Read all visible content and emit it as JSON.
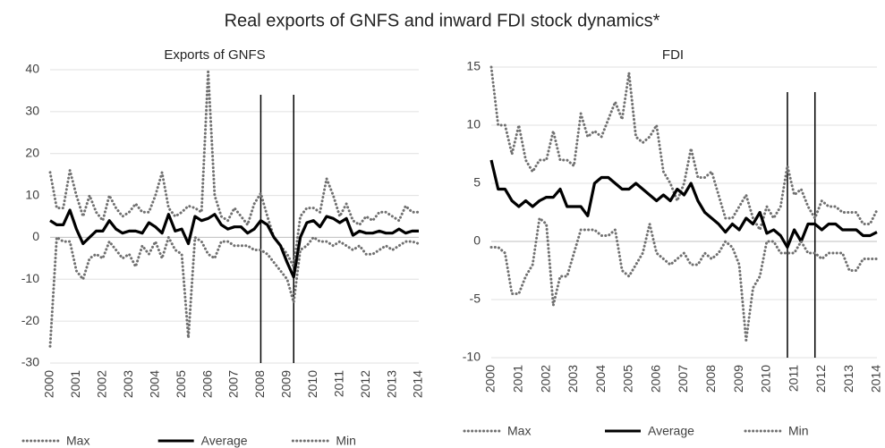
{
  "title": "Real exports of GNFS and inward FDI stock dynamics*",
  "chart_data": [
    {
      "type": "line",
      "title": "Exports of GNFS",
      "categories": [
        "2000",
        null,
        null,
        null,
        "2001",
        null,
        null,
        null,
        "2002",
        null,
        null,
        null,
        "2003",
        null,
        null,
        null,
        "2004",
        null,
        null,
        null,
        "2005",
        null,
        null,
        null,
        "2006",
        null,
        null,
        null,
        "2007",
        null,
        null,
        null,
        "2008",
        null,
        null,
        null,
        "2009",
        null,
        null,
        null,
        "2010",
        null,
        null,
        null,
        "2011",
        null,
        null,
        null,
        "2012",
        null,
        null,
        null,
        "2013",
        null,
        null,
        null,
        "2014"
      ],
      "ylim": [
        -30,
        40
      ],
      "yticks": [
        -30,
        -20,
        -10,
        0,
        10,
        20,
        30,
        40
      ],
      "grid": true,
      "vlines": [
        2008,
        2009.25
      ],
      "series": [
        {
          "name": "Max",
          "color": "#707070",
          "style": "dotted",
          "values": [
            15.5,
            7,
            7,
            16,
            10,
            5,
            10,
            6,
            4,
            10,
            7,
            5,
            6,
            8,
            6,
            6,
            10,
            15.5,
            7,
            5,
            6,
            7.5,
            7,
            6,
            39.5,
            10,
            5,
            4,
            7,
            5,
            3,
            8,
            10.5,
            5,
            0,
            -2,
            -4,
            -7,
            5,
            7,
            7,
            6,
            14,
            10,
            5,
            8,
            4,
            3,
            5,
            4,
            6,
            6,
            5,
            4,
            7.5,
            6,
            6
          ]
        },
        {
          "name": "Average",
          "color": "#000000",
          "style": "solid",
          "values": [
            4,
            3,
            3,
            6.5,
            2,
            -1.5,
            0,
            1.5,
            1.5,
            4,
            2,
            1,
            1.5,
            1.5,
            1,
            3.5,
            2.5,
            1,
            5.5,
            1.5,
            2,
            -1.5,
            5,
            4,
            4.5,
            5.5,
            3,
            2,
            2.5,
            2.5,
            1,
            2,
            4,
            3,
            0,
            -2,
            -6,
            -9.5,
            0,
            3.5,
            4,
            2.5,
            5,
            4.5,
            3.5,
            4.5,
            0.5,
            1.5,
            1,
            1,
            1.5,
            1,
            1,
            2,
            1,
            1.5,
            1.5
          ]
        },
        {
          "name": "Min",
          "color": "#707070",
          "style": "dotted",
          "values": [
            -26,
            0,
            -1,
            -1,
            -8,
            -10,
            -5,
            -4,
            -5,
            -1,
            -3,
            -5,
            -4,
            -7,
            -2,
            -4,
            -1,
            -5,
            0,
            -3,
            -4,
            -24,
            0,
            -1,
            -4,
            -5,
            -1,
            -1,
            -2,
            -2,
            -2,
            -3,
            -3,
            -4,
            -6,
            -8,
            -10,
            -15.5,
            -3,
            -2,
            0,
            -1,
            -1,
            -2,
            -1,
            -2,
            -3,
            -2,
            -4,
            -4,
            -3,
            -2,
            -3,
            -2,
            -1,
            -1,
            -1.5
          ]
        }
      ]
    },
    {
      "type": "line",
      "title": "FDI",
      "categories": [
        "2000",
        null,
        null,
        null,
        "2001",
        null,
        null,
        null,
        "2002",
        null,
        null,
        null,
        "2003",
        null,
        null,
        null,
        "2004",
        null,
        null,
        null,
        "2005",
        null,
        null,
        null,
        "2006",
        null,
        null,
        null,
        "2007",
        null,
        null,
        null,
        "2008",
        null,
        null,
        null,
        "2009",
        null,
        null,
        null,
        "2010",
        null,
        null,
        null,
        "2011",
        null,
        null,
        null,
        "2012",
        null,
        null,
        null,
        "2013",
        null,
        null,
        null,
        "2014"
      ],
      "ylim": [
        -10,
        15
      ],
      "yticks": [
        -10,
        -5,
        0,
        5,
        10,
        15
      ],
      "grid": true,
      "vlines": [
        2010.75,
        2011.75
      ],
      "series": [
        {
          "name": "Max",
          "color": "#707070",
          "style": "dotted",
          "values": [
            15,
            10,
            10,
            7.5,
            10,
            7,
            6,
            7,
            7,
            9.5,
            7,
            7,
            6.5,
            11,
            9,
            9.5,
            9,
            10.5,
            12,
            10.5,
            14.5,
            9,
            8.5,
            9,
            10,
            6,
            5,
            3.5,
            5,
            8,
            5.5,
            5.5,
            6,
            4,
            2,
            2,
            3,
            4,
            2,
            1,
            3,
            2,
            3,
            6.5,
            4,
            4.5,
            3,
            2,
            3.5,
            3,
            3,
            2.5,
            2.5,
            2.5,
            1.5,
            1.5,
            2.7
          ]
        },
        {
          "name": "Average",
          "color": "#000000",
          "style": "solid",
          "values": [
            7,
            4.5,
            4.5,
            3.5,
            3,
            3.5,
            3,
            3.5,
            3.8,
            3.8,
            4.5,
            3,
            3,
            3,
            2.2,
            5,
            5.5,
            5.5,
            5,
            4.5,
            4.5,
            5,
            4.5,
            4,
            3.5,
            4,
            3.5,
            4.5,
            4,
            5,
            3.5,
            2.5,
            2,
            1.5,
            0.8,
            1.5,
            1,
            2,
            1.5,
            2.5,
            0.7,
            1,
            0.5,
            -0.5,
            1,
            0,
            1.5,
            1.5,
            1,
            1.5,
            1.5,
            1,
            1,
            1,
            0.5,
            0.5,
            0.8
          ]
        },
        {
          "name": "Min",
          "color": "#707070",
          "style": "dotted",
          "values": [
            -0.5,
            -0.5,
            -1,
            -4.5,
            -4.5,
            -3,
            -2,
            2,
            1.5,
            -5.5,
            -3,
            -3,
            -1,
            1,
            1,
            1,
            0.5,
            0.5,
            1,
            -2.5,
            -3,
            -2,
            -1,
            1.5,
            -1,
            -1.5,
            -2,
            -1.5,
            -1,
            -2,
            -2,
            -1,
            -1.5,
            -1,
            0,
            -0.5,
            -2,
            -8.5,
            -4,
            -3,
            0,
            0,
            -1,
            -1,
            -1,
            0,
            -1,
            -1,
            -1.5,
            -1,
            -1,
            -1,
            -2.5,
            -2.5,
            -1.5,
            -1.5,
            -1.5
          ]
        }
      ]
    }
  ]
}
